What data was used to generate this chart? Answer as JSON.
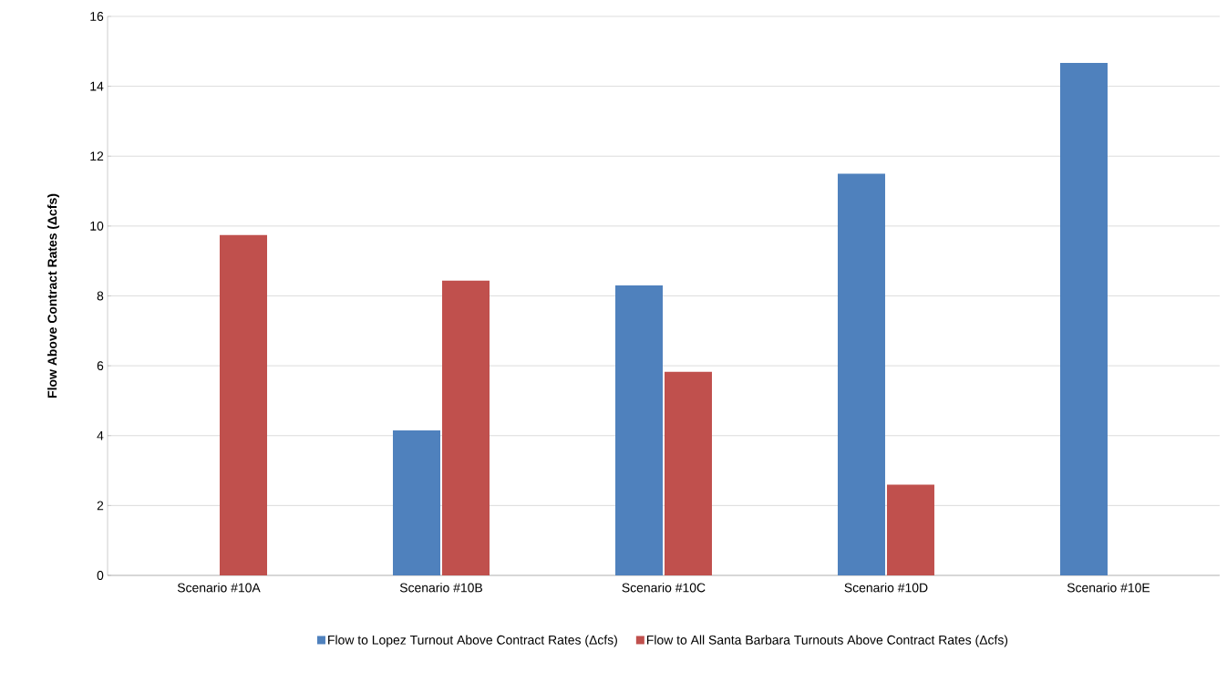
{
  "chart_data": {
    "type": "bar",
    "ylabel": "Flow Above Contract Rates (Δcfs)",
    "categories": [
      "Scenario #10A",
      "Scenario #10B",
      "Scenario #10C",
      "Scenario #10D",
      "Scenario #10E"
    ],
    "series": [
      {
        "name": "Flow to Lopez Turnout Above Contract Rates (Δcfs)",
        "color": "#4f81bd",
        "values": [
          0,
          4.15,
          8.3,
          11.5,
          14.67
        ]
      },
      {
        "name": "Flow to All Santa Barbara Turnouts Above Contract Rates (Δcfs)",
        "color": "#c0504d",
        "values": [
          9.74,
          8.44,
          5.83,
          2.6,
          0
        ]
      }
    ],
    "ylim": [
      0,
      16
    ],
    "yticks": [
      0,
      2,
      4,
      6,
      8,
      10,
      12,
      14,
      16
    ],
    "grid": "y",
    "legend": "bottom"
  }
}
